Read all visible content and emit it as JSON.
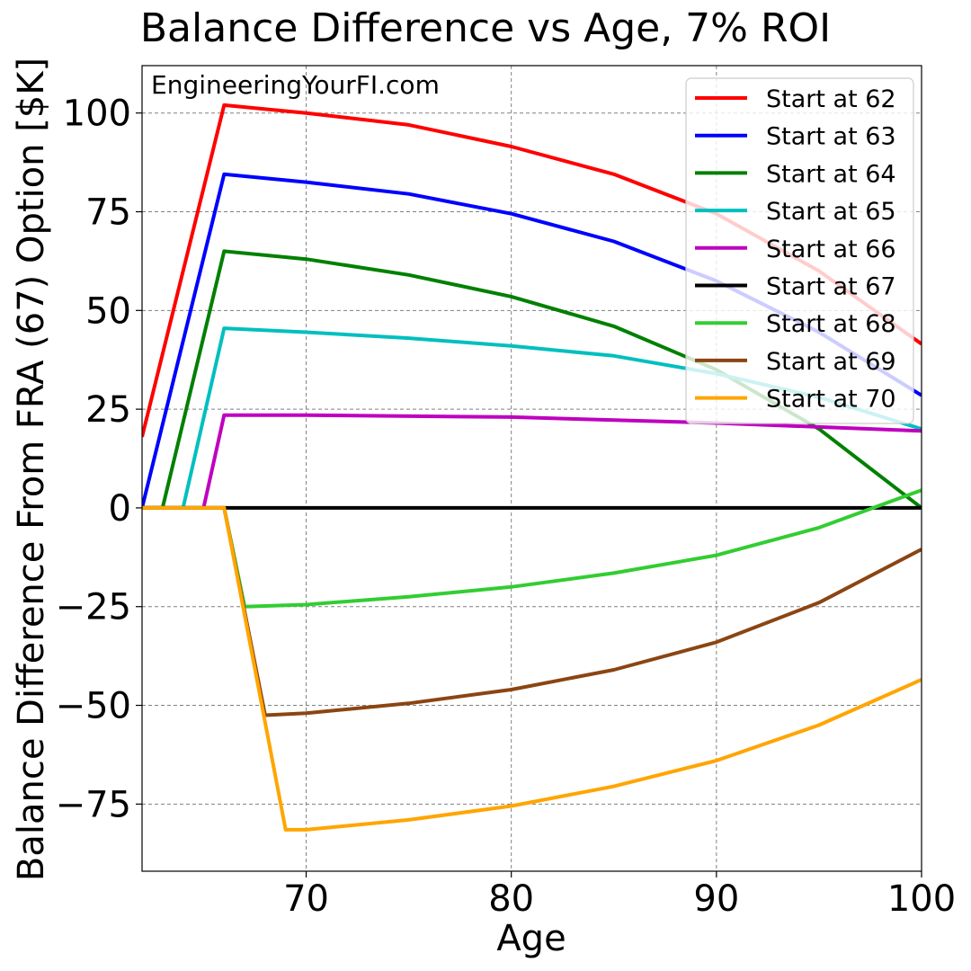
{
  "chart_data": {
    "type": "line",
    "title": "Balance Difference vs Age, 7% ROI",
    "xlabel": "Age",
    "ylabel": "Balance Difference From FRA (67) Option [$K]",
    "watermark": "EngineeringYourFI.com",
    "xlim": [
      62,
      100
    ],
    "ylim": [
      -92,
      112
    ],
    "xticks": [
      {
        "value": 70,
        "label": "70"
      },
      {
        "value": 80,
        "label": "80"
      },
      {
        "value": 90,
        "label": "90"
      },
      {
        "value": 100,
        "label": "100"
      }
    ],
    "yticks": [
      {
        "value": 100,
        "label": "100"
      },
      {
        "value": 75,
        "label": "75"
      },
      {
        "value": 50,
        "label": "50"
      },
      {
        "value": 25,
        "label": "25"
      },
      {
        "value": 0,
        "label": "0"
      },
      {
        "value": -25,
        "label": "−25"
      },
      {
        "value": -50,
        "label": "−50"
      },
      {
        "value": -75,
        "label": "−75"
      }
    ],
    "grid": true,
    "legend_position": "top-right",
    "series": [
      {
        "name": "Start at 62",
        "color": "#ff0000",
        "points": [
          [
            62,
            18
          ],
          [
            66,
            102
          ],
          [
            70,
            100
          ],
          [
            75,
            97
          ],
          [
            80,
            91.5
          ],
          [
            85,
            84.5
          ],
          [
            90,
            74.5
          ],
          [
            95,
            60
          ],
          [
            100,
            41.5
          ]
        ]
      },
      {
        "name": "Start at 63",
        "color": "#0000ff",
        "points": [
          [
            62,
            0
          ],
          [
            66,
            84.5
          ],
          [
            70,
            82.5
          ],
          [
            75,
            79.5
          ],
          [
            80,
            74.5
          ],
          [
            85,
            67.5
          ],
          [
            90,
            57.5
          ],
          [
            95,
            44.5
          ],
          [
            100,
            28.5
          ]
        ]
      },
      {
        "name": "Start at 64",
        "color": "#008000",
        "points": [
          [
            62,
            0
          ],
          [
            63,
            0
          ],
          [
            66,
            65
          ],
          [
            70,
            63
          ],
          [
            75,
            59
          ],
          [
            80,
            53.5
          ],
          [
            85,
            46
          ],
          [
            90,
            35
          ],
          [
            95,
            20
          ],
          [
            100,
            0
          ]
        ]
      },
      {
        "name": "Start at 65",
        "color": "#00bfbf",
        "points": [
          [
            62,
            0
          ],
          [
            64,
            0
          ],
          [
            66,
            45.5
          ],
          [
            70,
            44.5
          ],
          [
            75,
            43
          ],
          [
            80,
            41
          ],
          [
            85,
            38.5
          ],
          [
            90,
            34
          ],
          [
            95,
            28
          ],
          [
            100,
            20
          ]
        ]
      },
      {
        "name": "Start at 66",
        "color": "#bf00bf",
        "points": [
          [
            62,
            0
          ],
          [
            65,
            0
          ],
          [
            66,
            23.5
          ],
          [
            70,
            23.5
          ],
          [
            80,
            23
          ],
          [
            90,
            21.5
          ],
          [
            95,
            20.5
          ],
          [
            100,
            19.5
          ]
        ]
      },
      {
        "name": "Start at 67",
        "color": "#000000",
        "points": [
          [
            62,
            0
          ],
          [
            100,
            0
          ]
        ]
      },
      {
        "name": "Start at 68",
        "color": "#32cd32",
        "points": [
          [
            62,
            0
          ],
          [
            66,
            0
          ],
          [
            67,
            -25
          ],
          [
            70,
            -24.5
          ],
          [
            75,
            -22.5
          ],
          [
            80,
            -20
          ],
          [
            85,
            -16.5
          ],
          [
            90,
            -12
          ],
          [
            95,
            -5
          ],
          [
            100,
            4.5
          ]
        ]
      },
      {
        "name": "Start at 69",
        "color": "#8b4513",
        "points": [
          [
            62,
            0
          ],
          [
            66,
            0
          ],
          [
            68,
            -52.5
          ],
          [
            70,
            -52
          ],
          [
            75,
            -49.5
          ],
          [
            80,
            -46
          ],
          [
            85,
            -41
          ],
          [
            90,
            -34
          ],
          [
            95,
            -24
          ],
          [
            100,
            -10.5
          ]
        ]
      },
      {
        "name": "Start at 70",
        "color": "#ffa500",
        "points": [
          [
            62,
            0
          ],
          [
            66,
            0
          ],
          [
            69,
            -81.5
          ],
          [
            70,
            -81.5
          ],
          [
            75,
            -79
          ],
          [
            80,
            -75.5
          ],
          [
            85,
            -70.5
          ],
          [
            90,
            -64
          ],
          [
            95,
            -55
          ],
          [
            100,
            -43.5
          ]
        ]
      }
    ]
  }
}
